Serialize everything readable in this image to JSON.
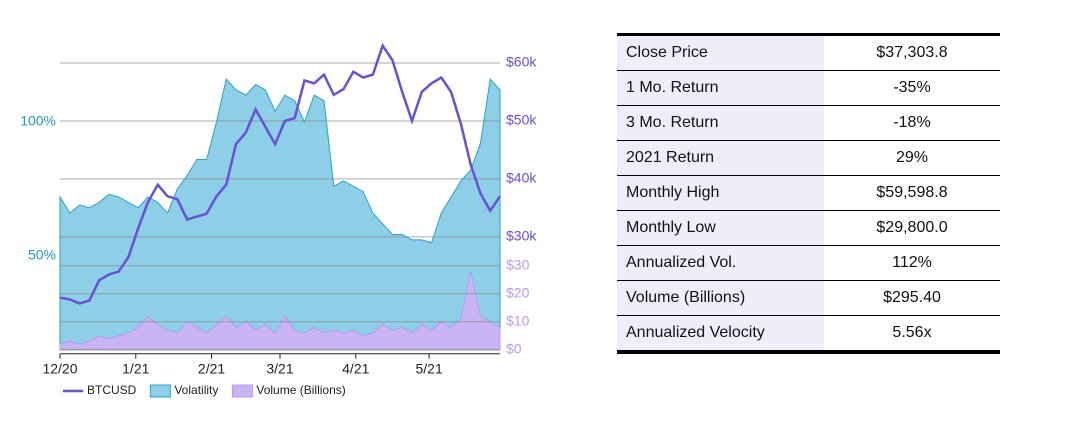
{
  "chart_data": {
    "type": "combo",
    "x": [
      0,
      4,
      8,
      12,
      16,
      20,
      24,
      28,
      32,
      36,
      40,
      44,
      48,
      52,
      56,
      60,
      64,
      68,
      72,
      76,
      80,
      84,
      88,
      92,
      96,
      100,
      104,
      108,
      112,
      116,
      120,
      124,
      128,
      132,
      136,
      140,
      144,
      148,
      152,
      156,
      160,
      164,
      168,
      172,
      176,
      180
    ],
    "xlim": [
      0,
      180
    ],
    "xticks": [
      {
        "value": 0,
        "label": "12/20"
      },
      {
        "value": 31,
        "label": "1/21"
      },
      {
        "value": 62,
        "label": "2/21"
      },
      {
        "value": 90,
        "label": "3/21"
      },
      {
        "value": 121,
        "label": "4/21"
      },
      {
        "value": 151,
        "label": "5/21"
      }
    ],
    "ylim": [
      15,
      130
    ],
    "yticks": [
      {
        "value": 50,
        "label": "50%"
      },
      {
        "value": 100,
        "label": "100%"
      }
    ],
    "y2lim": [
      10.5,
      63.7
    ],
    "y2ticks": [
      {
        "value": 30,
        "label": "$30k"
      },
      {
        "value": 40,
        "label": "$40k"
      },
      {
        "value": 50,
        "label": "$50k"
      },
      {
        "value": 60,
        "label": "$60k"
      }
    ],
    "y3lim": [
      0,
      110
    ],
    "y3ticks": [
      {
        "value": 0,
        "label": "$0"
      },
      {
        "value": 10,
        "label": "$10"
      },
      {
        "value": 20,
        "label": "$20"
      },
      {
        "value": 30,
        "label": "$30"
      }
    ],
    "grid": true,
    "series": [
      {
        "name": "BTCUSD",
        "kind": "line",
        "axis": "y2",
        "color": "#6a4fd8",
        "values": [
          19.5,
          19.2,
          18.5,
          19.0,
          22.5,
          23.5,
          24.0,
          26.5,
          31.5,
          36.0,
          39.0,
          37.0,
          36.5,
          33.0,
          33.5,
          34.0,
          37.0,
          39.0,
          46.0,
          48.0,
          52.0,
          49.0,
          46.0,
          50.0,
          50.5,
          57.0,
          56.5,
          58.0,
          54.5,
          55.5,
          58.5,
          57.5,
          58.0,
          63.0,
          60.5,
          55.0,
          50.0,
          55.0,
          56.5,
          57.5,
          55.0,
          49.5,
          42.5,
          37.5,
          34.5,
          37.0
        ]
      },
      {
        "name": "Volatility",
        "kind": "area",
        "color": "#8ecfe8",
        "values": [
          72,
          66,
          69,
          68,
          70,
          73,
          72,
          70,
          68,
          72,
          70,
          66,
          75,
          80,
          86,
          86,
          100,
          116,
          112,
          110,
          114,
          112,
          104,
          110,
          108,
          100,
          110,
          108,
          76,
          78,
          76,
          74,
          66,
          62,
          58,
          58,
          56,
          56,
          55,
          66,
          72,
          78,
          82,
          92,
          116,
          112
        ]
      },
      {
        "name": "Volume (Billions)",
        "kind": "area",
        "axis": "y3",
        "color": "#c9b3f5",
        "values": [
          2,
          3,
          2,
          3,
          5,
          4,
          5,
          6,
          8,
          12,
          9,
          7,
          6,
          10,
          8,
          6,
          9,
          12,
          8,
          10,
          7,
          9,
          6,
          12,
          7,
          6,
          8,
          6,
          7,
          6,
          7,
          5,
          6,
          9,
          7,
          8,
          6,
          9,
          7,
          10,
          8,
          11,
          28,
          12,
          10,
          8
        ]
      }
    ]
  },
  "table": {
    "rows": [
      [
        "Close Price",
        "$37,303.8"
      ],
      [
        "1 Mo. Return",
        "-35%"
      ],
      [
        "3 Mo. Return",
        "-18%"
      ],
      [
        "2021 Return",
        "29%"
      ],
      [
        "Monthly High",
        "$59,598.8"
      ],
      [
        "Monthly Low",
        "$29,800.0"
      ],
      [
        "Annualized Vol.",
        "112%"
      ],
      [
        "Volume (Billions)",
        "$295.40"
      ],
      [
        "Annualized Velocity",
        "5.56x"
      ]
    ]
  }
}
